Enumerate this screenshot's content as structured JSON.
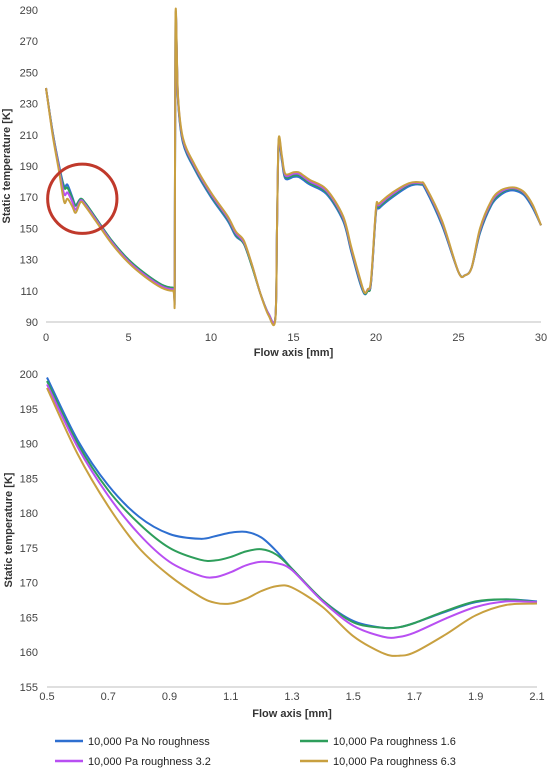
{
  "chart_data": [
    {
      "type": "line",
      "title": "",
      "xlabel": "Flow axis [mm]",
      "ylabel": "Static temperature [K]",
      "xlim": [
        0,
        30
      ],
      "ylim": [
        90,
        290
      ],
      "xticks": [
        "0",
        "5",
        "10",
        "15",
        "20",
        "25",
        "30"
      ],
      "yticks": [
        "90",
        "110",
        "130",
        "150",
        "170",
        "190",
        "210",
        "230",
        "250",
        "270",
        "290"
      ],
      "grid": false,
      "annotation": {
        "shape": "circle",
        "color": "#c0392b",
        "center": [
          2.2,
          169
        ],
        "radius_x_units": 2.1
      },
      "series": [
        {
          "name": "10,000 Pa No roughness",
          "color": "#2e6fd0",
          "x": [
            0,
            0.4,
            0.8,
            1.1,
            1.3,
            1.6,
            1.8,
            2.1,
            2.4,
            3,
            4,
            5,
            6,
            7,
            7.7,
            7.8,
            7.85,
            8,
            8.3,
            9,
            10,
            11,
            11.5,
            12,
            12.5,
            13,
            13.5,
            13.9,
            14,
            14.1,
            14.3,
            14.5,
            15,
            15.3,
            15.6,
            16,
            17,
            18,
            18.5,
            19,
            19.3,
            19.5,
            19.7,
            20,
            20.2,
            21,
            22,
            22.7,
            23,
            24,
            25,
            25.4,
            25.8,
            26.3,
            27,
            27.5,
            28,
            28.5,
            29,
            29.5,
            30
          ],
          "y": [
            240,
            212,
            190,
            177,
            178,
            170,
            165,
            169,
            166,
            157,
            142,
            130,
            121,
            114,
            112,
            114,
            284,
            232,
            205,
            188,
            170,
            155,
            145,
            140,
            125,
            108,
            95,
            93,
            150,
            204,
            193,
            182,
            183,
            183,
            181,
            178,
            172,
            155,
            135,
            116,
            108,
            110,
            115,
            160,
            163,
            170,
            177,
            178,
            175,
            152,
            122,
            120,
            125,
            147,
            165,
            171,
            174,
            174,
            171,
            163,
            152
          ]
        },
        {
          "name": "10,000 Pa roughness 1.6",
          "color": "#2e9e5b",
          "x": [
            0,
            0.4,
            0.8,
            1.1,
            1.3,
            1.6,
            1.8,
            2.1,
            2.4,
            3,
            4,
            5,
            6,
            7,
            7.7,
            7.8,
            7.85,
            8,
            8.3,
            9,
            10,
            11,
            11.5,
            12,
            12.5,
            13,
            13.5,
            13.9,
            14,
            14.1,
            14.3,
            14.5,
            15,
            15.3,
            15.6,
            16,
            17,
            18,
            18.5,
            19,
            19.3,
            19.5,
            19.7,
            20,
            20.2,
            21,
            22,
            22.7,
            23,
            24,
            25,
            25.4,
            25.8,
            26.3,
            27,
            27.5,
            28,
            28.5,
            29,
            29.5,
            30
          ],
          "y": [
            240,
            212,
            189,
            176,
            176,
            169,
            164.5,
            169,
            166,
            157,
            142,
            130,
            121,
            114,
            112,
            114,
            285,
            233,
            206,
            189,
            171,
            156,
            146,
            140,
            125,
            108,
            95,
            93,
            150,
            205,
            194,
            183,
            184,
            184,
            182,
            179,
            173,
            156,
            136,
            117,
            108.5,
            110,
            115,
            161,
            164,
            171,
            178,
            178.5,
            176,
            153,
            122,
            120,
            125,
            148,
            166,
            172,
            175,
            175,
            172,
            164,
            152
          ]
        },
        {
          "name": "10,000 Pa roughness 3.2",
          "color": "#b84ff2",
          "x": [
            0,
            0.4,
            0.8,
            1.1,
            1.3,
            1.6,
            1.8,
            2.1,
            2.4,
            3,
            4,
            5,
            6,
            7,
            7.7,
            7.8,
            7.85,
            8,
            8.3,
            9,
            10,
            11,
            11.5,
            12,
            12.5,
            13,
            13.5,
            13.9,
            14,
            14.1,
            14.3,
            14.5,
            15,
            15.3,
            15.6,
            16,
            17,
            18,
            18.5,
            19,
            19.3,
            19.5,
            19.7,
            20,
            20.2,
            21,
            22,
            22.7,
            23,
            24,
            25,
            25.4,
            25.8,
            26.3,
            27,
            27.5,
            28,
            28.5,
            29,
            29.5,
            30
          ],
          "y": [
            240,
            211,
            188,
            172,
            173,
            167,
            162,
            168,
            165,
            156,
            141,
            129,
            120,
            113,
            111,
            113,
            285,
            234,
            207,
            190,
            172,
            157,
            147,
            141,
            126,
            108,
            95,
            93,
            150,
            206,
            195,
            184,
            185,
            185,
            183,
            180,
            174,
            157,
            137,
            118,
            109,
            111,
            116,
            162,
            165,
            172,
            178.5,
            179,
            176.5,
            154,
            122,
            120,
            125,
            149,
            167,
            173,
            175.5,
            175.5,
            172.5,
            164.5,
            152
          ]
        },
        {
          "name": "10,000 Pa roughness 6.3",
          "color": "#c8a040",
          "x": [
            0,
            0.4,
            0.8,
            1.1,
            1.3,
            1.6,
            1.8,
            2.1,
            2.4,
            3,
            4,
            5,
            6,
            7,
            7.7,
            7.8,
            7.85,
            8,
            8.3,
            9,
            10,
            11,
            11.5,
            12,
            12.5,
            13,
            13.5,
            13.9,
            14,
            14.1,
            14.3,
            14.5,
            15,
            15.3,
            15.6,
            16,
            17,
            18,
            18.5,
            19,
            19.3,
            19.5,
            19.7,
            20,
            20.2,
            21,
            22,
            22.7,
            23,
            24,
            25,
            25.4,
            25.8,
            26.3,
            27,
            27.5,
            28,
            28.5,
            29,
            29.5,
            30
          ],
          "y": [
            240,
            210,
            186,
            167,
            169,
            164,
            160,
            167,
            164,
            155,
            140,
            128,
            119,
            112,
            110,
            112,
            287,
            235,
            208,
            191,
            173,
            158,
            148,
            142,
            126,
            108,
            94,
            92,
            150,
            207,
            196,
            185,
            186,
            186,
            184,
            181,
            175,
            158,
            138,
            119,
            109,
            111,
            117,
            163,
            166,
            173,
            179,
            179.5,
            177,
            155,
            122,
            120,
            125,
            150,
            168,
            174,
            176,
            176,
            173,
            165,
            152
          ]
        }
      ]
    },
    {
      "type": "line",
      "title": "",
      "xlabel": "Flow axis [mm]",
      "ylabel": "Static temperature [K]",
      "xlim": [
        0.5,
        2.1
      ],
      "ylim": [
        155,
        200
      ],
      "xticks": [
        "0.5",
        "0.7",
        "0.9",
        "1.1",
        "1.3",
        "1.5",
        "1.7",
        "1.9",
        "2.1"
      ],
      "yticks": [
        "155",
        "160",
        "165",
        "170",
        "175",
        "180",
        "185",
        "190",
        "195",
        "200"
      ],
      "grid": false,
      "legend_position": "bottom",
      "series": [
        {
          "name": "10,000 Pa No roughness",
          "color": "#2e6fd0",
          "x": [
            0.5,
            0.6,
            0.7,
            0.8,
            0.9,
            1.0,
            1.05,
            1.1,
            1.15,
            1.2,
            1.25,
            1.3,
            1.4,
            1.5,
            1.6,
            1.65,
            1.7,
            1.8,
            1.9,
            2.0,
            2.1
          ],
          "y": [
            199.5,
            190.5,
            184,
            179.5,
            177,
            176.3,
            176.7,
            177.2,
            177.3,
            176.5,
            174.5,
            172,
            167.5,
            164.5,
            163.5,
            163.6,
            164.2,
            165.8,
            167.2,
            167.6,
            167.3
          ]
        },
        {
          "name": "10,000 Pa roughness 1.6",
          "color": "#2e9e5b",
          "x": [
            0.5,
            0.6,
            0.7,
            0.8,
            0.9,
            1.0,
            1.05,
            1.1,
            1.15,
            1.2,
            1.25,
            1.3,
            1.4,
            1.5,
            1.6,
            1.65,
            1.7,
            1.8,
            1.9,
            2.0,
            2.1
          ],
          "y": [
            199,
            190,
            183.3,
            178.5,
            175,
            173.3,
            173.2,
            173.7,
            174.5,
            174.8,
            174,
            172,
            167.5,
            164.3,
            163.5,
            163.6,
            164.2,
            165.9,
            167.3,
            167.6,
            167.2
          ]
        },
        {
          "name": "10,000 Pa roughness 3.2",
          "color": "#b84ff2",
          "x": [
            0.5,
            0.6,
            0.7,
            0.8,
            0.9,
            1.0,
            1.05,
            1.1,
            1.15,
            1.2,
            1.25,
            1.3,
            1.4,
            1.5,
            1.6,
            1.65,
            1.7,
            1.8,
            1.9,
            2.0,
            2.1
          ],
          "y": [
            198.5,
            189.5,
            182.5,
            177,
            173,
            171,
            170.8,
            171.5,
            172.5,
            173,
            172.8,
            171.8,
            167.3,
            163.8,
            162.2,
            162.2,
            162.8,
            164.8,
            166.5,
            167.3,
            167.2
          ]
        },
        {
          "name": "10,000 Pa roughness 6.3",
          "color": "#c8a040",
          "x": [
            0.5,
            0.6,
            0.7,
            0.8,
            0.9,
            1.0,
            1.05,
            1.1,
            1.15,
            1.2,
            1.25,
            1.3,
            1.4,
            1.5,
            1.6,
            1.65,
            1.7,
            1.8,
            1.9,
            2.0,
            2.1
          ],
          "y": [
            198,
            188.5,
            181,
            175,
            171,
            168,
            167.1,
            167,
            167.7,
            168.8,
            169.5,
            169.3,
            166.5,
            162.3,
            159.8,
            159.5,
            160,
            162.5,
            165.3,
            166.8,
            167
          ]
        }
      ]
    }
  ]
}
